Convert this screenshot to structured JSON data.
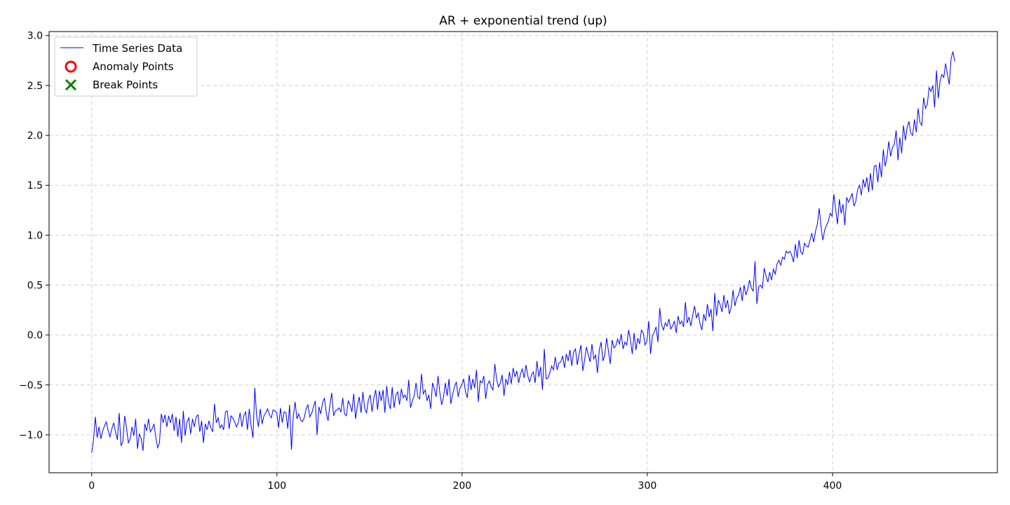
{
  "chart_data": {
    "type": "line",
    "title": "AR + exponential trend (up)",
    "xlabel": "",
    "ylabel": "",
    "xlim": [
      -23,
      489
    ],
    "ylim": [
      -1.38,
      3.04
    ],
    "xticks": [
      0,
      100,
      200,
      300,
      400
    ],
    "yticks": [
      -1.0,
      -0.5,
      0.0,
      0.5,
      1.0,
      1.5,
      2.0,
      2.5,
      3.0
    ],
    "xtick_labels": [
      "0",
      "100",
      "200",
      "300",
      "400"
    ],
    "ytick_labels": [
      "−1.0",
      "−0.5",
      "0.0",
      "0.5",
      "1.0",
      "1.5",
      "2.0",
      "2.5",
      "3.0"
    ],
    "grid": true,
    "legend_position": "top-left",
    "legend": [
      "Time Series Data",
      "Anomaly Points",
      "Break Points"
    ],
    "colors": {
      "series": "#0000ff",
      "anomaly": "#ff0000",
      "break": "#008000",
      "axes": "#000000"
    },
    "series": [
      {
        "name": "Time Series Data",
        "x_start": 0,
        "x_end": 466,
        "values": [
          -1.18,
          -1.05,
          -0.82,
          -1.03,
          -0.92,
          -1.04,
          -0.96,
          -0.91,
          -0.87,
          -0.96,
          -1.02,
          -0.94,
          -0.88,
          -0.97,
          -1.05,
          -0.78,
          -1.11,
          -1.07,
          -0.81,
          -0.93,
          -1.08,
          -1.04,
          -0.92,
          -1.01,
          -0.84,
          -1.14,
          -0.99,
          -1.04,
          -1.16,
          -0.89,
          -0.96,
          -0.84,
          -0.97,
          -0.94,
          -0.89,
          -1.03,
          -1.13,
          -1.08,
          -0.79,
          -0.88,
          -0.8,
          -0.92,
          -0.81,
          -0.88,
          -0.79,
          -0.96,
          -0.82,
          -1.02,
          -0.84,
          -1.08,
          -0.76,
          -1.01,
          -0.87,
          -0.83,
          -0.99,
          -0.84,
          -0.92,
          -0.82,
          -0.8,
          -0.97,
          -0.86,
          -1.08,
          -0.89,
          -0.95,
          -0.86,
          -0.93,
          -0.97,
          -0.69,
          -0.88,
          -0.83,
          -0.93,
          -0.9,
          -0.95,
          -0.77,
          -0.76,
          -0.94,
          -0.81,
          -0.83,
          -0.87,
          -0.92,
          -0.88,
          -0.78,
          -0.92,
          -0.81,
          -0.77,
          -0.95,
          -0.74,
          -0.91,
          -1.03,
          -0.53,
          -0.81,
          -0.92,
          -0.74,
          -0.89,
          -0.81,
          -0.78,
          -0.74,
          -0.8,
          -0.83,
          -0.75,
          -0.76,
          -0.78,
          -0.93,
          -0.73,
          -0.88,
          -0.77,
          -0.78,
          -0.94,
          -0.7,
          -1.15,
          -0.82,
          -0.67,
          -0.84,
          -0.79,
          -0.85,
          -0.87,
          -0.83,
          -0.74,
          -0.7,
          -0.82,
          -0.79,
          -0.72,
          -0.66,
          -1.0,
          -0.72,
          -0.79,
          -0.68,
          -0.63,
          -0.78,
          -0.86,
          -0.7,
          -0.58,
          -0.81,
          -0.76,
          -0.75,
          -0.73,
          -0.77,
          -0.63,
          -0.79,
          -0.81,
          -0.66,
          -0.7,
          -0.77,
          -0.59,
          -0.84,
          -0.71,
          -0.62,
          -0.78,
          -0.57,
          -0.74,
          -0.78,
          -0.65,
          -0.6,
          -0.77,
          -0.63,
          -0.55,
          -0.75,
          -0.56,
          -0.66,
          -0.55,
          -0.78,
          -0.51,
          -0.68,
          -0.74,
          -0.52,
          -0.73,
          -0.6,
          -0.57,
          -0.7,
          -0.54,
          -0.63,
          -0.6,
          -0.66,
          -0.45,
          -0.73,
          -0.66,
          -0.61,
          -0.48,
          -0.62,
          -0.64,
          -0.39,
          -0.59,
          -0.55,
          -0.66,
          -0.6,
          -0.74,
          -0.48,
          -0.54,
          -0.62,
          -0.41,
          -0.58,
          -0.7,
          -0.62,
          -0.48,
          -0.61,
          -0.44,
          -0.69,
          -0.59,
          -0.52,
          -0.47,
          -0.62,
          -0.53,
          -0.5,
          -0.44,
          -0.57,
          -0.63,
          -0.4,
          -0.55,
          -0.44,
          -0.53,
          -0.35,
          -0.67,
          -0.46,
          -0.48,
          -0.41,
          -0.64,
          -0.5,
          -0.46,
          -0.52,
          -0.55,
          -0.29,
          -0.45,
          -0.52,
          -0.48,
          -0.4,
          -0.61,
          -0.44,
          -0.5,
          -0.37,
          -0.49,
          -0.33,
          -0.42,
          -0.36,
          -0.48,
          -0.39,
          -0.34,
          -0.43,
          -0.3,
          -0.41,
          -0.47,
          -0.4,
          -0.37,
          -0.48,
          -0.26,
          -0.42,
          -0.32,
          -0.55,
          -0.14,
          -0.44,
          -0.43,
          -0.38,
          -0.31,
          -0.35,
          -0.22,
          -0.35,
          -0.28,
          -0.27,
          -0.21,
          -0.33,
          -0.19,
          -0.26,
          -0.15,
          -0.31,
          -0.17,
          -0.14,
          -0.3,
          -0.19,
          -0.1,
          -0.36,
          -0.25,
          -0.12,
          -0.2,
          -0.27,
          -0.09,
          -0.24,
          -0.2,
          -0.38,
          -0.15,
          -0.07,
          -0.26,
          -0.2,
          -0.03,
          -0.16,
          -0.29,
          -0.05,
          -0.13,
          -0.11,
          -0.04,
          -0.09,
          0.01,
          -0.14,
          -0.07,
          -0.1,
          0.05,
          -0.05,
          -0.19,
          0.02,
          -0.15,
          -0.03,
          -0.09,
          0.05,
          0.02,
          -0.1,
          -0.06,
          0.14,
          -0.19,
          -0.01,
          0.03,
          0.08,
          -0.07,
          0.27,
          0.1,
          0.05,
          0.12,
          0.09,
          0.16,
          0.06,
          0.09,
          0.14,
          0.02,
          0.19,
          0.11,
          0.14,
          0.08,
          0.33,
          0.12,
          0.18,
          0.09,
          0.2,
          0.29,
          0.17,
          0.22,
          0.11,
          0.05,
          0.21,
          0.14,
          0.31,
          0.18,
          0.26,
          0.04,
          0.42,
          0.19,
          0.35,
          0.3,
          0.23,
          0.4,
          0.27,
          0.35,
          0.21,
          0.28,
          0.45,
          0.29,
          0.37,
          0.4,
          0.48,
          0.34,
          0.5,
          0.4,
          0.46,
          0.55,
          0.47,
          0.44,
          0.74,
          0.31,
          0.48,
          0.5,
          0.47,
          0.67,
          0.59,
          0.53,
          0.63,
          0.55,
          0.66,
          0.61,
          0.71,
          0.75,
          0.7,
          0.78,
          0.76,
          0.84,
          0.82,
          0.84,
          0.8,
          0.73,
          0.91,
          0.77,
          0.95,
          0.83,
          0.81,
          0.92,
          0.89,
          0.88,
          0.95,
          1.02,
          0.93,
          1.04,
          1.11,
          1.27,
          1.09,
          0.95,
          1.05,
          1.1,
          1.14,
          1.22,
          1.19,
          1.41,
          1.26,
          1.11,
          1.36,
          1.22,
          1.31,
          1.1,
          1.38,
          1.33,
          1.37,
          1.42,
          1.29,
          1.34,
          1.46,
          1.5,
          1.4,
          1.56,
          1.48,
          1.58,
          1.43,
          1.62,
          1.45,
          1.69,
          1.7,
          1.53,
          1.73,
          1.58,
          1.86,
          1.69,
          1.78,
          1.94,
          1.79,
          1.88,
          1.91,
          2.05,
          1.75,
          1.98,
          1.82,
          2.1,
          1.95,
          2.08,
          2.14,
          2.02,
          2.0,
          2.16,
          2.03,
          2.27,
          2.13,
          2.1,
          2.38,
          2.27,
          2.31,
          2.48,
          2.44,
          2.5,
          2.28,
          2.65,
          2.37,
          2.55,
          2.61,
          2.58,
          2.72,
          2.61,
          2.51,
          2.77,
          2.84,
          2.74
        ]
      }
    ],
    "anomaly_points": [],
    "break_points": []
  }
}
